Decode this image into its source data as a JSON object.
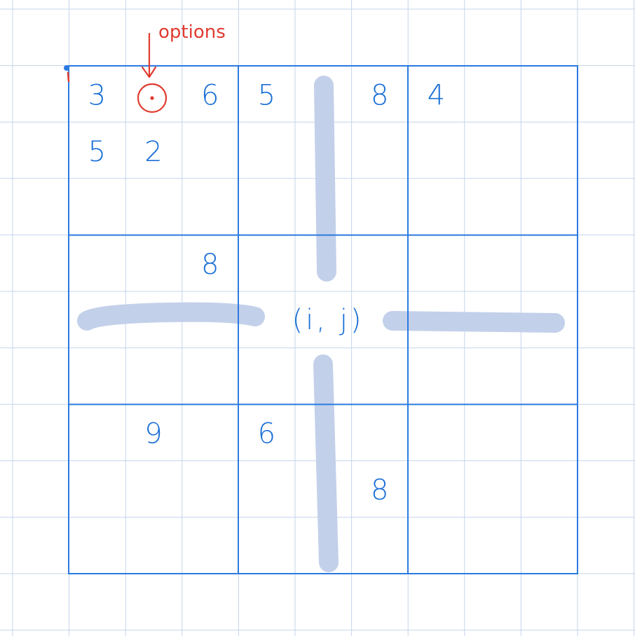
{
  "diagram": {
    "annotation_label": "options",
    "center_label": "(i, j)",
    "colors": {
      "grid_paper": "#c5d4ea",
      "board_lines": "#2a7ae0",
      "digits": "#1a6fd6",
      "annotation": "#e03b2f",
      "highlight": "#c3d0ea"
    },
    "cells": [
      {
        "row": 0,
        "col": 0,
        "value": "3"
      },
      {
        "row": 0,
        "col": 2,
        "value": "6"
      },
      {
        "row": 0,
        "col": 3,
        "value": "5"
      },
      {
        "row": 0,
        "col": 5,
        "value": "8"
      },
      {
        "row": 0,
        "col": 6,
        "value": "4"
      },
      {
        "row": 1,
        "col": 0,
        "value": "5"
      },
      {
        "row": 1,
        "col": 1,
        "value": "2"
      },
      {
        "row": 3,
        "col": 2,
        "value": "8"
      },
      {
        "row": 6,
        "col": 1,
        "value": "9"
      },
      {
        "row": 6,
        "col": 3,
        "value": "6"
      },
      {
        "row": 7,
        "col": 5,
        "value": "8"
      }
    ]
  }
}
